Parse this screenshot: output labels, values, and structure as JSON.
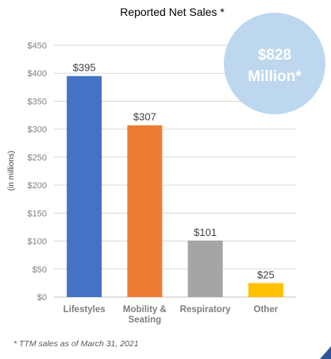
{
  "chart_data": {
    "type": "bar",
    "title": "Reported Net Sales *",
    "ylabel": "(in millions)",
    "xlabel": "",
    "ylim": [
      0,
      450
    ],
    "y_ticks": [
      "$0",
      "$50",
      "$100",
      "$150",
      "$200",
      "$250",
      "$300",
      "$350",
      "$400",
      "$450"
    ],
    "grid": true,
    "categories": [
      [
        "Lifestyles"
      ],
      [
        "Mobility &",
        "Seating"
      ],
      [
        "Respiratory"
      ],
      [
        "Other"
      ]
    ],
    "values": [
      395,
      307,
      101,
      25
    ],
    "data_labels": [
      "$395",
      "$307",
      "$101",
      "$25"
    ],
    "colors": [
      "#4472c4",
      "#ed7d31",
      "#a5a5a5",
      "#ffc000"
    ]
  },
  "badge": {
    "line1": "$828",
    "line2": "Million*",
    "fill": "#bdd7ee",
    "text_color": "#ffffff"
  },
  "footnote": "* TTM sales as of March 31, 2021"
}
